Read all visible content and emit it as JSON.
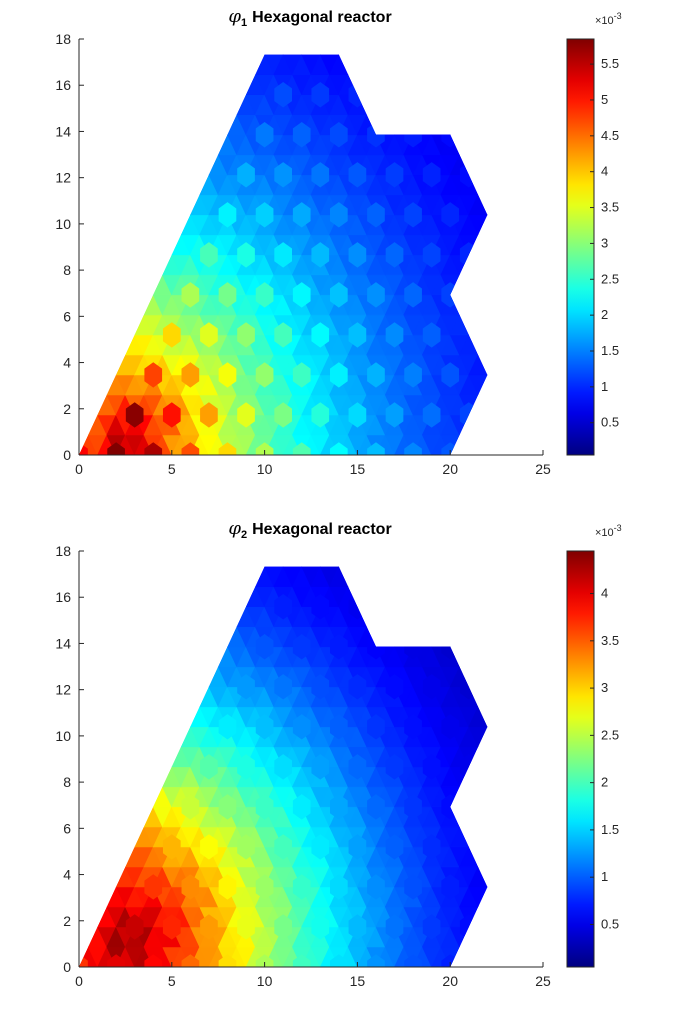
{
  "chart_data": [
    {
      "type": "heatmap",
      "title_symbol": "φ",
      "title_subscript": "1",
      "title": "Hexagonal reactor",
      "xlim": [
        0,
        25
      ],
      "ylim": [
        0,
        18
      ],
      "xticks": [
        "0",
        "5",
        "10",
        "15",
        "20",
        "25"
      ],
      "yticks": [
        "0",
        "2",
        "4",
        "6",
        "8",
        "10",
        "12",
        "14",
        "16",
        "18"
      ],
      "grid": false,
      "colormap": "jet",
      "colorbar": {
        "multiplier": "×10",
        "exponent": "-3",
        "range": [
          0.05,
          5.85
        ],
        "ticks": [
          "0.5",
          "1",
          "1.5",
          "2",
          "2.5",
          "3",
          "3.5",
          "4",
          "4.5",
          "5",
          "5.5"
        ],
        "tick_values": [
          0.5,
          1,
          1.5,
          2,
          2.5,
          3,
          3.5,
          4,
          4.5,
          5,
          5.5
        ]
      },
      "domain_outline": [
        [
          0,
          0
        ],
        [
          10,
          17.32
        ],
        [
          14,
          17.32
        ],
        [
          16,
          13.86
        ],
        [
          20,
          13.86
        ],
        [
          22,
          10.39
        ],
        [
          20,
          6.93
        ],
        [
          22,
          3.46
        ],
        [
          20,
          0
        ]
      ],
      "field_peak": 5.85,
      "field_peak_location": [
        2.5,
        0.6
      ],
      "field_min": 0.05
    },
    {
      "type": "heatmap",
      "title_symbol": "φ",
      "title_subscript": "2",
      "title": "Hexagonal reactor",
      "xlim": [
        0,
        25
      ],
      "ylim": [
        0,
        18
      ],
      "xticks": [
        "0",
        "5",
        "10",
        "15",
        "20",
        "25"
      ],
      "yticks": [
        "0",
        "2",
        "4",
        "6",
        "8",
        "10",
        "12",
        "14",
        "16",
        "18"
      ],
      "grid": false,
      "colormap": "jet",
      "colorbar": {
        "multiplier": "×10",
        "exponent": "-3",
        "range": [
          0.05,
          4.45
        ],
        "ticks": [
          "0.5",
          "1",
          "1.5",
          "2",
          "2.5",
          "3",
          "3.5",
          "4"
        ],
        "tick_values": [
          0.5,
          1,
          1.5,
          2,
          2.5,
          3,
          3.5,
          4
        ]
      },
      "domain_outline": [
        [
          0,
          0
        ],
        [
          10,
          17.32
        ],
        [
          14,
          17.32
        ],
        [
          16,
          13.86
        ],
        [
          20,
          13.86
        ],
        [
          22,
          10.39
        ],
        [
          20,
          6.93
        ],
        [
          22,
          3.46
        ],
        [
          20,
          0
        ]
      ],
      "field_peak": 4.45,
      "field_peak_location": [
        2.5,
        1.2
      ],
      "field_min": 0.05
    }
  ]
}
